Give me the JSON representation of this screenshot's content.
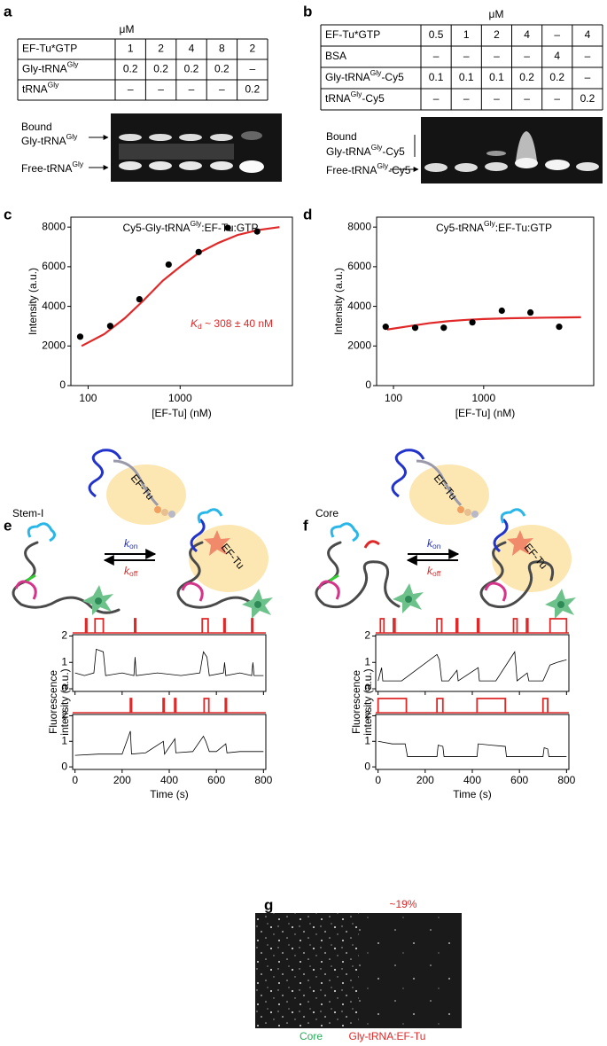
{
  "panel_labels": [
    "a",
    "b",
    "c",
    "d",
    "e",
    "f",
    "g"
  ],
  "gel_a": {
    "unit": "μM",
    "rows": [
      {
        "label": {
          "text": "EF-Tu*GTP"
        },
        "cells": [
          "1",
          "2",
          "4",
          "8",
          "2"
        ]
      },
      {
        "label": {
          "text": "Gly-tRNA",
          "sup": "Gly"
        },
        "cells": [
          "0.2",
          "0.2",
          "0.2",
          "0.2",
          "–"
        ]
      },
      {
        "label": {
          "text": "tRNA",
          "sup": "Gly"
        },
        "cells": [
          "–",
          "–",
          "–",
          "–",
          "0.2"
        ]
      }
    ],
    "bound_title": "Bound",
    "bound_species": {
      "text": "Gly-tRNA",
      "sup": "Gly"
    },
    "free_species": {
      "text": "Free-tRNA",
      "sup": "Gly"
    }
  },
  "gel_b": {
    "unit": "μM",
    "rows": [
      {
        "label": {
          "text": "EF-Tu*GTP"
        },
        "cells": [
          "0.5",
          "1",
          "2",
          "4",
          "–",
          "4"
        ]
      },
      {
        "label": {
          "text": "BSA"
        },
        "cells": [
          "–",
          "–",
          "–",
          "–",
          "4",
          "–"
        ]
      },
      {
        "label": {
          "text": "Gly-tRNA",
          "sup": "Gly",
          "suffix": "-Cy5"
        },
        "cells": [
          "0.1",
          "0.1",
          "0.1",
          "0.2",
          "0.2",
          "–"
        ]
      },
      {
        "label": {
          "text": "tRNA",
          "sup": "Gly",
          "suffix": "-Cy5"
        },
        "cells": [
          "–",
          "–",
          "–",
          "–",
          "–",
          "0.2"
        ]
      }
    ],
    "bound_title": "Bound",
    "bound_species": {
      "text": "Gly-tRNA",
      "sup": "Gly",
      "suffix": "-Cy5"
    },
    "free_species": {
      "text": "Free-tRNA",
      "sup": "Gly",
      "suffix": "-Cy5"
    }
  },
  "panel_e": {
    "construct": "Stem-I",
    "protein": [
      "EF-Tu",
      "EF-Tu"
    ],
    "k_on": {
      "text": "k",
      "sub": "on"
    },
    "k_off": {
      "text": "k",
      "sub": "off"
    },
    "ylabel": [
      "Fluorescence",
      "intensity (a.u.)"
    ]
  },
  "panel_f": {
    "construct": "Core",
    "protein": [
      "EF-Tu",
      "EF-Tu"
    ],
    "k_on": {
      "text": "k",
      "sub": "on"
    },
    "k_off": {
      "text": "k",
      "sub": "off"
    },
    "ylabel": [
      "Fluorescence",
      "intensity (a.u.)"
    ]
  },
  "panel_g": {
    "fraction": "~19%",
    "left": "Core",
    "right": "Gly-tRNA:EF-Tu"
  },
  "chart_data": [
    {
      "type": "scatter",
      "title": {
        "text": "Cy5-Gly-tRNA",
        "sup": "Gly",
        "suffix": ":EF-Tu:GTP"
      },
      "xlabel": "[EF-Tu] (nM)",
      "ylabel": "Intensity (a.u.)",
      "xscale": "log",
      "xlim": [
        65,
        16600
      ],
      "ylim": [
        0,
        8500
      ],
      "xticks": [
        100,
        1000
      ],
      "yticks": [
        0,
        2000,
        4000,
        6000,
        8000
      ],
      "points": {
        "color": "#000000",
        "x": [
          82,
          174,
          361,
          750,
          1590,
          3300,
          6870
        ],
        "values": [
          2470,
          3010,
          4360,
          6110,
          6740,
          7960,
          7780
        ]
      },
      "fit": {
        "color": "#e02828",
        "x": [
          85,
          150,
          250,
          400,
          650,
          1000,
          1600,
          2600,
          4200,
          7000,
          12000
        ],
        "values": [
          2000,
          2600,
          3400,
          4300,
          5300,
          6000,
          6700,
          7200,
          7600,
          7850,
          8000
        ]
      },
      "annotation": {
        "text": "K",
        "sub": "d",
        "suffix": " ~ 308 ± 40 nM",
        "color": "#e02828"
      }
    },
    {
      "type": "scatter",
      "title": {
        "text": "Cy5-tRNA",
        "sup": "Gly",
        "suffix": ":EF-Tu:GTP"
      },
      "xlabel": "[EF-Tu] (nM)",
      "ylabel": "Intensity (a.u.)",
      "xscale": "log",
      "xlim": [
        65,
        16600
      ],
      "ylim": [
        0,
        8500
      ],
      "xticks": [
        100,
        1000
      ],
      "yticks": [
        0,
        2000,
        4000,
        6000,
        8000
      ],
      "points": {
        "color": "#000000",
        "x": [
          82,
          174,
          361,
          750,
          1590,
          3300,
          6870
        ],
        "values": [
          2970,
          2920,
          2920,
          3190,
          3780,
          3690,
          2970
        ]
      },
      "fit": {
        "color": "#e02828",
        "x": [
          85,
          150,
          250,
          400,
          650,
          1000,
          2000,
          5000,
          12000
        ],
        "values": [
          2830,
          3000,
          3150,
          3250,
          3320,
          3360,
          3400,
          3430,
          3450
        ]
      }
    },
    {
      "type": "line",
      "xlim": [
        -10,
        810
      ],
      "ylim": [
        -0.1,
        2.05
      ],
      "xticks": [
        0,
        200,
        400,
        600,
        800
      ],
      "xtick_labels": false,
      "yticks": [
        0,
        1,
        2
      ],
      "trace": {
        "color": "#000000",
        "x": [
          0,
          40,
          80,
          90,
          120,
          130,
          200,
          250,
          255,
          260,
          350,
          450,
          530,
          545,
          560,
          570,
          630,
          635,
          640,
          700,
          750,
          755,
          760,
          800
        ],
        "values": [
          0.6,
          0.5,
          0.6,
          1.5,
          1.4,
          0.5,
          0.6,
          0.5,
          1.2,
          0.5,
          0.6,
          0.5,
          0.6,
          1.4,
          1.2,
          0.5,
          0.6,
          1.0,
          0.5,
          0.6,
          0.5,
          1.0,
          0.5,
          0.5
        ]
      },
      "bound_intervals": {
        "color": "#e02828",
        "values": [
          [
            45,
            50
          ],
          [
            85,
            120
          ],
          [
            253,
            258
          ],
          [
            540,
            565
          ],
          [
            632,
            637
          ],
          [
            750,
            755
          ]
        ]
      }
    },
    {
      "type": "line",
      "xlim": [
        -10,
        810
      ],
      "ylim": [
        -0.1,
        2.05
      ],
      "xticks": [
        0,
        200,
        400,
        600,
        800
      ],
      "yticks": [
        0,
        1,
        2
      ],
      "xlabel": "Time (s)",
      "trace": {
        "color": "#000000",
        "x": [
          0,
          100,
          200,
          235,
          240,
          300,
          375,
          380,
          424,
          428,
          500,
          545,
          555,
          570,
          600,
          640,
          645,
          700,
          800
        ],
        "values": [
          0.45,
          0.5,
          0.5,
          1.4,
          0.5,
          0.55,
          1.0,
          0.5,
          1.1,
          0.55,
          0.6,
          1.2,
          1.0,
          0.6,
          0.6,
          0.9,
          0.55,
          0.6,
          0.6
        ]
      },
      "bound_intervals": {
        "color": "#e02828",
        "values": [
          [
            235,
            240
          ],
          [
            374,
            379
          ],
          [
            423,
            428
          ],
          [
            548,
            568
          ],
          [
            638,
            643
          ]
        ]
      }
    },
    {
      "type": "line",
      "xlim": [
        -10,
        810
      ],
      "ylim": [
        -0.1,
        2.05
      ],
      "xticks": [
        0,
        200,
        400,
        600,
        800
      ],
      "xtick_labels": false,
      "yticks": [
        0,
        1,
        2
      ],
      "trace": {
        "color": "#000000",
        "x": [
          0,
          15,
          20,
          100,
          250,
          260,
          270,
          300,
          335,
          340,
          425,
          430,
          500,
          580,
          585,
          590,
          633,
          640,
          700,
          730,
          760,
          800
        ],
        "values": [
          0.3,
          0.8,
          0.3,
          0.3,
          1.3,
          1.1,
          0.3,
          0.3,
          0.7,
          0.3,
          0.8,
          0.3,
          0.3,
          1.4,
          0.9,
          0.3,
          0.6,
          0.3,
          0.3,
          0.9,
          1.0,
          1.1
        ]
      },
      "bound_intervals": {
        "color": "#e02828",
        "values": [
          [
            10,
            25
          ],
          [
            65,
            72
          ],
          [
            250,
            270
          ],
          [
            332,
            338
          ],
          [
            422,
            428
          ],
          [
            575,
            590
          ],
          [
            630,
            636
          ],
          [
            730,
            800
          ]
        ]
      }
    },
    {
      "type": "line",
      "xlim": [
        -10,
        810
      ],
      "ylim": [
        -0.1,
        2.05
      ],
      "xticks": [
        0,
        200,
        400,
        600,
        800
      ],
      "yticks": [
        0,
        1,
        2
      ],
      "xlabel": "Time (s)",
      "trace": {
        "color": "#000000",
        "x": [
          0,
          60,
          115,
          125,
          250,
          255,
          275,
          280,
          420,
          425,
          480,
          540,
          545,
          700,
          705,
          720,
          725,
          800
        ],
        "values": [
          1.0,
          0.9,
          0.9,
          0.4,
          0.4,
          0.85,
          0.8,
          0.4,
          0.4,
          0.9,
          0.85,
          0.8,
          0.4,
          0.4,
          0.75,
          0.7,
          0.4,
          0.4
        ]
      },
      "bound_intervals": {
        "color": "#e02828",
        "values": [
          [
            0,
            120
          ],
          [
            250,
            275
          ],
          [
            420,
            540
          ],
          [
            700,
            720
          ]
        ]
      }
    }
  ]
}
